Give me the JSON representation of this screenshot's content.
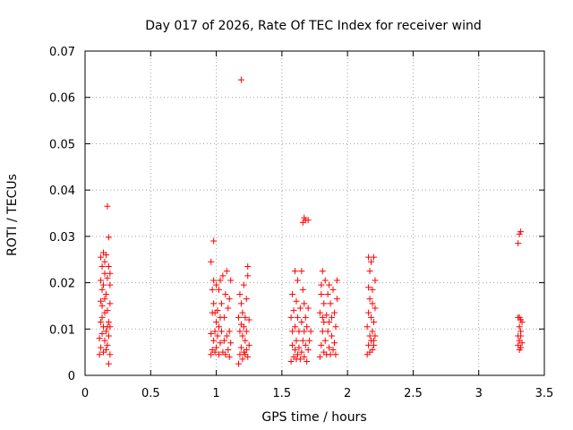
{
  "chart_data": {
    "type": "scatter",
    "title": "Day 017 of 2026, Rate Of TEC Index for receiver wind",
    "xlabel": "GPS time / hours",
    "ylabel": "ROTI / TECUs",
    "xlim": [
      0,
      3.5
    ],
    "ylim": [
      0,
      0.07
    ],
    "xticks": [
      "0",
      "0.5",
      "1",
      "1.5",
      "2",
      "2.5",
      "3",
      "3.5"
    ],
    "yticks": [
      "0",
      "0.01",
      "0.02",
      "0.03",
      "0.04",
      "0.05",
      "0.06",
      "0.07"
    ],
    "grid": true,
    "marker": "+",
    "color": "#ff0000",
    "series": [
      {
        "x": [
          0.11,
          0.11,
          0.12,
          0.12,
          0.12,
          0.12,
          0.12,
          0.13,
          0.13,
          0.13,
          0.13,
          0.13,
          0.14,
          0.14,
          0.14,
          0.14,
          0.15,
          0.15,
          0.15,
          0.15,
          0.15,
          0.16,
          0.16,
          0.16,
          0.16,
          0.17,
          0.17,
          0.17,
          0.17,
          0.18,
          0.18,
          0.18,
          0.18,
          0.19,
          0.19,
          0.19,
          0.19,
          0.19,
          0.17,
          0.18,
          0.96,
          0.96,
          0.97,
          0.97,
          0.97,
          0.98,
          0.98,
          0.98,
          0.99,
          0.99,
          0.99,
          1.0,
          1.0,
          1.0,
          1.01,
          1.01,
          1.02,
          1.02,
          1.02,
          1.03,
          1.03,
          1.03,
          1.04,
          1.04,
          1.05,
          1.05,
          1.06,
          1.06,
          1.07,
          1.07,
          1.08,
          1.08,
          1.09,
          1.09,
          1.1,
          1.1,
          1.1,
          1.11,
          1.11,
          0.98,
          0.96,
          1.17,
          1.17,
          1.18,
          1.18,
          1.18,
          1.19,
          1.19,
          1.19,
          1.2,
          1.2,
          1.2,
          1.21,
          1.21,
          1.21,
          1.22,
          1.22,
          1.22,
          1.23,
          1.23,
          1.23,
          1.24,
          1.24,
          1.24,
          1.25,
          1.25,
          1.19,
          1.57,
          1.57,
          1.58,
          1.58,
          1.58,
          1.59,
          1.59,
          1.6,
          1.6,
          1.6,
          1.61,
          1.61,
          1.61,
          1.62,
          1.62,
          1.62,
          1.63,
          1.63,
          1.64,
          1.64,
          1.65,
          1.65,
          1.65,
          1.66,
          1.66,
          1.67,
          1.67,
          1.67,
          1.68,
          1.68,
          1.69,
          1.69,
          1.7,
          1.7,
          1.71,
          1.72,
          1.66,
          1.67,
          1.68,
          1.7,
          1.79,
          1.79,
          1.8,
          1.8,
          1.81,
          1.81,
          1.82,
          1.82,
          1.82,
          1.83,
          1.83,
          1.84,
          1.84,
          1.85,
          1.85,
          1.86,
          1.86,
          1.86,
          1.87,
          1.87,
          1.88,
          1.88,
          1.89,
          1.89,
          1.9,
          1.9,
          1.91,
          1.91,
          1.92,
          1.92,
          1.8,
          1.81,
          2.15,
          2.15,
          2.16,
          2.16,
          2.16,
          2.17,
          2.17,
          2.17,
          2.18,
          2.18,
          2.18,
          2.19,
          2.19,
          2.19,
          2.2,
          2.2,
          2.2,
          2.21,
          2.21,
          2.21,
          2.17,
          2.19,
          2.2,
          2.16,
          3.3,
          3.3,
          3.3,
          3.31,
          3.31,
          3.31,
          3.31,
          3.32,
          3.32,
          3.32,
          3.32,
          3.32,
          3.33,
          3.33,
          3.3,
          3.31
        ],
        "y": [
          0.0045,
          0.008,
          0.006,
          0.0115,
          0.016,
          0.0205,
          0.0255,
          0.009,
          0.0125,
          0.015,
          0.0185,
          0.0235,
          0.005,
          0.0105,
          0.0195,
          0.0265,
          0.0075,
          0.0135,
          0.0165,
          0.022,
          0.0245,
          0.0055,
          0.0095,
          0.0175,
          0.026,
          0.0065,
          0.0105,
          0.014,
          0.021,
          0.0025,
          0.0085,
          0.0115,
          0.0235,
          0.0045,
          0.0105,
          0.0155,
          0.022,
          0.0195,
          0.0365,
          0.0298,
          0.0045,
          0.009,
          0.0055,
          0.0135,
          0.0185,
          0.0075,
          0.0155,
          0.0205,
          0.005,
          0.0095,
          0.0135,
          0.006,
          0.0115,
          0.0195,
          0.0085,
          0.014,
          0.0045,
          0.0105,
          0.0185,
          0.007,
          0.0125,
          0.0205,
          0.0095,
          0.0155,
          0.005,
          0.0215,
          0.0075,
          0.0125,
          0.0045,
          0.0175,
          0.0085,
          0.0225,
          0.0055,
          0.0145,
          0.004,
          0.0095,
          0.0165,
          0.007,
          0.0205,
          0.029,
          0.0245,
          0.0025,
          0.0125,
          0.0045,
          0.0095,
          0.0175,
          0.006,
          0.011,
          0.0155,
          0.0035,
          0.0085,
          0.0135,
          0.005,
          0.0105,
          0.0195,
          0.0045,
          0.0075,
          0.0125,
          0.0055,
          0.0095,
          0.0165,
          0.004,
          0.0215,
          0.0235,
          0.0065,
          0.012,
          0.0638,
          0.003,
          0.0125,
          0.0065,
          0.0095,
          0.0175,
          0.004,
          0.014,
          0.0055,
          0.0105,
          0.0225,
          0.0035,
          0.0075,
          0.016,
          0.0045,
          0.0125,
          0.0205,
          0.006,
          0.0095,
          0.0035,
          0.0145,
          0.005,
          0.0115,
          0.0225,
          0.0075,
          0.0185,
          0.004,
          0.0095,
          0.0155,
          0.0065,
          0.0125,
          0.003,
          0.0105,
          0.0055,
          0.0145,
          0.0075,
          0.0095,
          0.033,
          0.034,
          0.0335,
          0.0335,
          0.004,
          0.0135,
          0.0065,
          0.0175,
          0.0095,
          0.0225,
          0.005,
          0.0115,
          0.0155,
          0.0075,
          0.0205,
          0.0045,
          0.013,
          0.0095,
          0.0175,
          0.006,
          0.0115,
          0.0195,
          0.0045,
          0.0155,
          0.0085,
          0.0125,
          0.0055,
          0.0185,
          0.007,
          0.0135,
          0.0045,
          0.0105,
          0.0165,
          0.0205,
          0.0195,
          0.0125,
          0.0045,
          0.0105,
          0.0065,
          0.0135,
          0.019,
          0.005,
          0.0085,
          0.0165,
          0.0075,
          0.0125,
          0.0245,
          0.0055,
          0.0095,
          0.0155,
          0.0065,
          0.0115,
          0.0255,
          0.0085,
          0.0145,
          0.0205,
          0.0225,
          0.0185,
          0.0075,
          0.0255,
          0.0065,
          0.0085,
          0.0125,
          0.0055,
          0.0075,
          0.0105,
          0.0125,
          0.006,
          0.0085,
          0.0095,
          0.012,
          0.031,
          0.007,
          0.0115,
          0.0285,
          0.0305
        ]
      }
    ]
  }
}
